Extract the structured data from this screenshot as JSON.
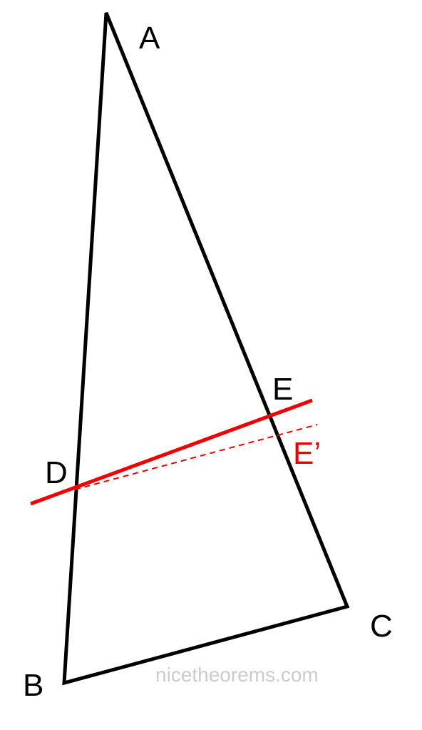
{
  "nodes": [
    {
      "label": "A"
    },
    {
      "label": "B"
    },
    {
      "label": "C"
    },
    {
      "label": "D"
    },
    {
      "label": "E"
    },
    {
      "label": "E’"
    }
  ],
  "watermark": "nicetheorems.com"
}
